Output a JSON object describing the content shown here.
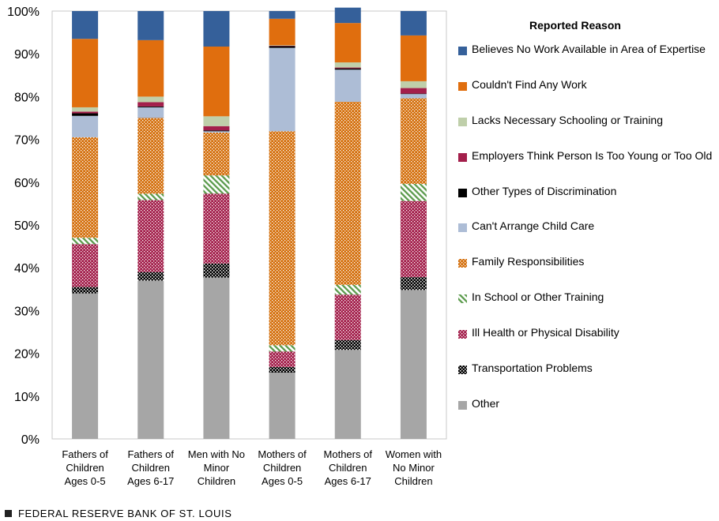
{
  "chart_data": {
    "type": "stacked-bar-100",
    "title": "",
    "xlabel": "",
    "ylabel": "",
    "ylim": [
      0,
      100
    ],
    "yticks": [
      "0%",
      "10%",
      "20%",
      "30%",
      "40%",
      "50%",
      "60%",
      "70%",
      "80%",
      "90%",
      "100%"
    ],
    "categories": [
      [
        "Fathers of",
        "Children",
        "Ages 0-5"
      ],
      [
        "Fathers of",
        "Children",
        "Ages 6-17"
      ],
      [
        "Men with No",
        "Minor",
        "Children"
      ],
      [
        "Mothers of",
        "Children",
        "Ages 0-5"
      ],
      [
        "Mothers of",
        "Children",
        "Ages 6-17"
      ],
      [
        "Women with",
        "No Minor",
        "Children"
      ]
    ],
    "legend_title": "Reported Reason",
    "series": [
      {
        "name": "Other",
        "color": "#a6a6a6",
        "pattern": "solid",
        "values": [
          34,
          37,
          37.7,
          15.5,
          20.8,
          34.8
        ]
      },
      {
        "name": "Transportation Problems",
        "color": "#000000",
        "pattern": "dots-black",
        "values": [
          1.5,
          2,
          3.3,
          1.3,
          2.3,
          3
        ]
      },
      {
        "name": "Ill Health or Physical Disability",
        "color": "#a31f4b",
        "pattern": "dots",
        "values": [
          10,
          16.8,
          16.3,
          3.6,
          10.6,
          17.8
        ]
      },
      {
        "name": "In School or Other Training",
        "color": "#5a9a4b",
        "pattern": "diagonal",
        "values": [
          1.5,
          1.5,
          4.3,
          1.5,
          2.3,
          4
        ]
      },
      {
        "name": "Family Responsibilities",
        "color": "#d4700e",
        "pattern": "dots",
        "values": [
          23.5,
          17.7,
          10,
          50,
          42.8,
          20
        ]
      },
      {
        "name": "Can't Arrange Child Care",
        "color": "#adbdd6",
        "pattern": "solid",
        "values": [
          5,
          2.5,
          0.3,
          19.5,
          7.5,
          1
        ]
      },
      {
        "name": "Other Types of Discrimination",
        "color": "#000000",
        "pattern": "solid",
        "values": [
          0.6,
          0.2,
          0.2,
          0.4,
          0.3,
          0.1
        ]
      },
      {
        "name": "Employers Think Person Is Too Young or Too Old",
        "color": "#a31f4b",
        "pattern": "solid",
        "values": [
          0.4,
          1,
          1,
          0.1,
          0.2,
          1.3
        ]
      },
      {
        "name": "Lacks Necessary Schooling or Training",
        "color": "#bfcfaa",
        "pattern": "solid",
        "values": [
          1,
          1.3,
          2.3,
          0.1,
          1.2,
          1.6
        ]
      },
      {
        "name": "Couldn't Find Any Work",
        "color": "#e06e0e",
        "pattern": "solid",
        "values": [
          16,
          13.2,
          16.3,
          6.2,
          9.2,
          10.7
        ]
      },
      {
        "name": "Believes No Work Available in Area of Expertise",
        "color": "#35609a",
        "pattern": "solid",
        "values": [
          6.5,
          6.8,
          8.3,
          1.8,
          3.6,
          5.7
        ]
      }
    ]
  },
  "footer": {
    "source": "FEDERAL RESERVE BANK OF ST. LOUIS"
  }
}
